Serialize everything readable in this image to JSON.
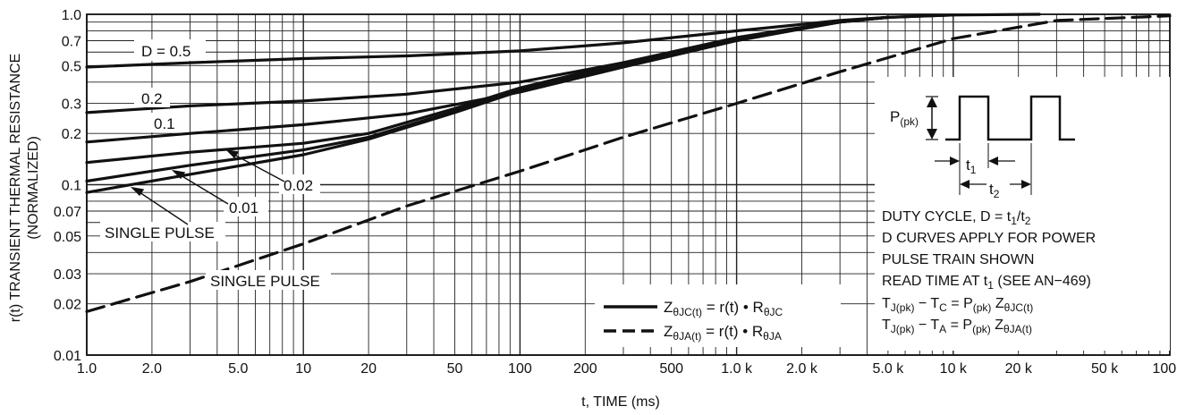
{
  "chart_data": {
    "type": "line",
    "xlabel": "t, TIME (ms)",
    "ylabel_line1": "r(t) TRANSIENT THERMAL RESISTANCE",
    "ylabel_line2": "(NORMALIZED)",
    "x_scale": "log",
    "y_scale": "log",
    "xlim": [
      1.0,
      100000
    ],
    "ylim": [
      0.01,
      1.0
    ],
    "grid": true,
    "x_ticks": [
      {
        "v": 1.0,
        "label": "1.0"
      },
      {
        "v": 2.0,
        "label": "2.0"
      },
      {
        "v": 5.0,
        "label": "5.0"
      },
      {
        "v": 10,
        "label": "10"
      },
      {
        "v": 20,
        "label": "20"
      },
      {
        "v": 50,
        "label": "50"
      },
      {
        "v": 100,
        "label": "100"
      },
      {
        "v": 200,
        "label": "200"
      },
      {
        "v": 500,
        "label": "500"
      },
      {
        "v": 1000,
        "label": "1.0 k"
      },
      {
        "v": 2000,
        "label": "2.0 k"
      },
      {
        "v": 5000,
        "label": "5.0 k"
      },
      {
        "v": 10000,
        "label": "10 k"
      },
      {
        "v": 20000,
        "label": "20 k"
      },
      {
        "v": 50000,
        "label": "50 k"
      },
      {
        "v": 100000,
        "label": "100 k"
      }
    ],
    "y_ticks": [
      {
        "v": 1.0,
        "label": "1.0"
      },
      {
        "v": 0.7,
        "label": "0.7"
      },
      {
        "v": 0.5,
        "label": "0.5"
      },
      {
        "v": 0.3,
        "label": "0.3"
      },
      {
        "v": 0.2,
        "label": "0.2"
      },
      {
        "v": 0.1,
        "label": "0.1"
      },
      {
        "v": 0.07,
        "label": "0.07"
      },
      {
        "v": 0.05,
        "label": "0.05"
      },
      {
        "v": 0.03,
        "label": "0.03"
      },
      {
        "v": 0.02,
        "label": "0.02"
      },
      {
        "v": 0.01,
        "label": "0.01"
      }
    ],
    "series": [
      {
        "style": "solid",
        "x": [
          1,
          3,
          10,
          30,
          100,
          300,
          1000,
          3000,
          5000,
          10000,
          25000
        ],
        "y": [
          0.49,
          0.52,
          0.55,
          0.57,
          0.61,
          0.68,
          0.8,
          0.92,
          0.96,
          0.99,
          1.0
        ]
      },
      {
        "style": "solid",
        "x": [
          1,
          3,
          10,
          30,
          100,
          300,
          1000,
          3000,
          5000,
          10000
        ],
        "y": [
          0.265,
          0.29,
          0.31,
          0.34,
          0.4,
          0.52,
          0.72,
          0.9,
          0.96,
          0.99
        ]
      },
      {
        "style": "solid",
        "x": [
          1,
          3,
          10,
          30,
          100,
          300,
          1000,
          3000,
          5000
        ],
        "y": [
          0.178,
          0.2,
          0.225,
          0.26,
          0.35,
          0.49,
          0.7,
          0.9,
          0.96
        ]
      },
      {
        "style": "solid",
        "x": [
          1,
          3,
          10,
          20,
          50,
          100,
          300,
          1000,
          3000,
          5000
        ],
        "y": [
          0.135,
          0.155,
          0.175,
          0.2,
          0.28,
          0.37,
          0.52,
          0.73,
          0.91,
          0.96
        ]
      },
      {
        "style": "solid",
        "x": [
          1,
          3,
          10,
          20,
          50,
          100,
          300,
          1000,
          3000,
          5000
        ],
        "y": [
          0.105,
          0.13,
          0.16,
          0.19,
          0.27,
          0.36,
          0.5,
          0.72,
          0.9,
          0.96
        ]
      },
      {
        "style": "solid",
        "x": [
          1,
          3,
          10,
          20,
          50,
          100,
          300,
          1000,
          3000,
          5000
        ],
        "y": [
          0.09,
          0.115,
          0.15,
          0.185,
          0.265,
          0.355,
          0.5,
          0.72,
          0.9,
          0.96
        ]
      },
      {
        "style": "dashed",
        "x": [
          1,
          3,
          10,
          30,
          100,
          300,
          1000,
          3000,
          10000,
          30000,
          100000
        ],
        "y": [
          0.018,
          0.027,
          0.045,
          0.075,
          0.12,
          0.19,
          0.3,
          0.46,
          0.72,
          0.92,
          0.98
        ]
      }
    ],
    "curve_labels": [
      {
        "text": "D = 0.5"
      },
      {
        "text": "0.2"
      },
      {
        "text": "0.1"
      },
      {
        "text": "0.02"
      },
      {
        "text": "0.01"
      },
      {
        "text": "SINGLE PULSE"
      },
      {
        "text": "SINGLE PULSE"
      }
    ],
    "legend": {
      "placement": "bottom-center-right",
      "entries": [
        {
          "style": "solid",
          "z_sub": "θJC(t)",
          "mid": " = r(t) • R",
          "r_sub": "θJC"
        },
        {
          "style": "dashed",
          "z_sub": "θJA(t)",
          "mid": " = r(t) • R",
          "r_sub": "θJA"
        }
      ]
    },
    "inset": {
      "p_label": "P",
      "p_sub": "(pk)",
      "t1": "t",
      "t1_sub": "1",
      "t2": "t",
      "t2_sub": "2",
      "duty_line": "DUTY CYCLE, D = t",
      "duty_sub1": "1",
      "duty_slash": "/t",
      "duty_sub2": "2",
      "d_curves_1": "D CURVES APPLY FOR POWER",
      "d_curves_2": "PULSE TRAIN SHOWN",
      "read_time_a": "READ TIME AT t",
      "read_time_sub": "1",
      "read_time_b": " (SEE AN−469)",
      "eq1": {
        "a": "T",
        "a_sub": "J(pk)",
        "b": " − T",
        "b_sub": "C",
        "c": " = P",
        "c_sub": "(pk)",
        "d": " Z",
        "d_sub": "θJC(t)"
      },
      "eq2": {
        "a": "T",
        "a_sub": "J(pk)",
        "b": " − T",
        "b_sub": "A",
        "c": " = P",
        "c_sub": "(pk)",
        "d": " Z",
        "d_sub": "θJA(t)"
      }
    }
  }
}
